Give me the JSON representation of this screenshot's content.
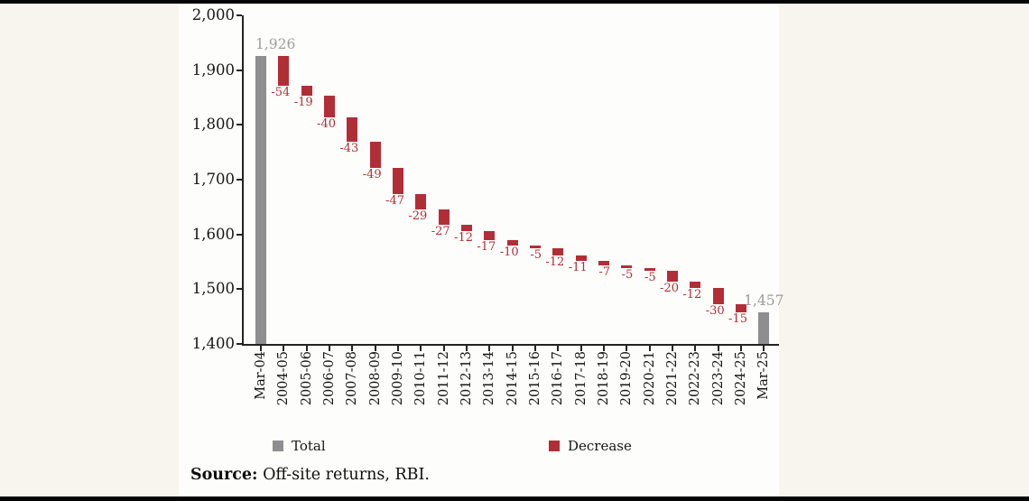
{
  "page": {
    "background": "#f8f5ef",
    "panel_background": "#fdfdfb",
    "edge_bar_color": "#050505"
  },
  "chart_data": {
    "type": "bar",
    "subtype": "waterfall",
    "title": "",
    "xlabel": "",
    "ylabel": "",
    "grid": false,
    "legend_position": "bottom",
    "categories": [
      "Mar-04",
      "2004-05",
      "2005-06",
      "2006-07",
      "2007-08",
      "2008-09",
      "2009-10",
      "2010-11",
      "2011-12",
      "2012-13",
      "2013-14",
      "2014-15",
      "2015-16",
      "2016-17",
      "2017-18",
      "2018-19",
      "2019-20",
      "2020-21",
      "2021-22",
      "2022-23",
      "2023-24",
      "2024-25",
      "Mar-25"
    ],
    "start_total": {
      "category": "Mar-04",
      "value": 1926,
      "display": "1,926"
    },
    "end_total": {
      "category": "Mar-25",
      "value": 1457,
      "display": "1,457"
    },
    "decreases": [
      -54,
      -19,
      -40,
      -43,
      -49,
      -47,
      -29,
      -27,
      -12,
      -17,
      -10,
      -5,
      -12,
      -11,
      -7,
      -5,
      -5,
      -20,
      -12,
      -30,
      -15
    ],
    "y_axis": {
      "min": 1400,
      "max": 2000,
      "step": 100,
      "tick_labels": [
        "1,400",
        "1,500",
        "1,600",
        "1,700",
        "1,800",
        "1,900",
        "2,000"
      ]
    },
    "colors": {
      "total_bar": "#8e8e90",
      "decrease_bar": "#b22e37",
      "total_label": "#9c9c9c",
      "decrease_label": "#b22e37",
      "axis": "#232323"
    }
  },
  "legend": {
    "items": [
      {
        "label": "Total",
        "color": "#8e8e90"
      },
      {
        "label": "Decrease",
        "color": "#b22e37"
      }
    ]
  },
  "source": {
    "label": "Source:",
    "text": " Off-site returns, RBI."
  }
}
